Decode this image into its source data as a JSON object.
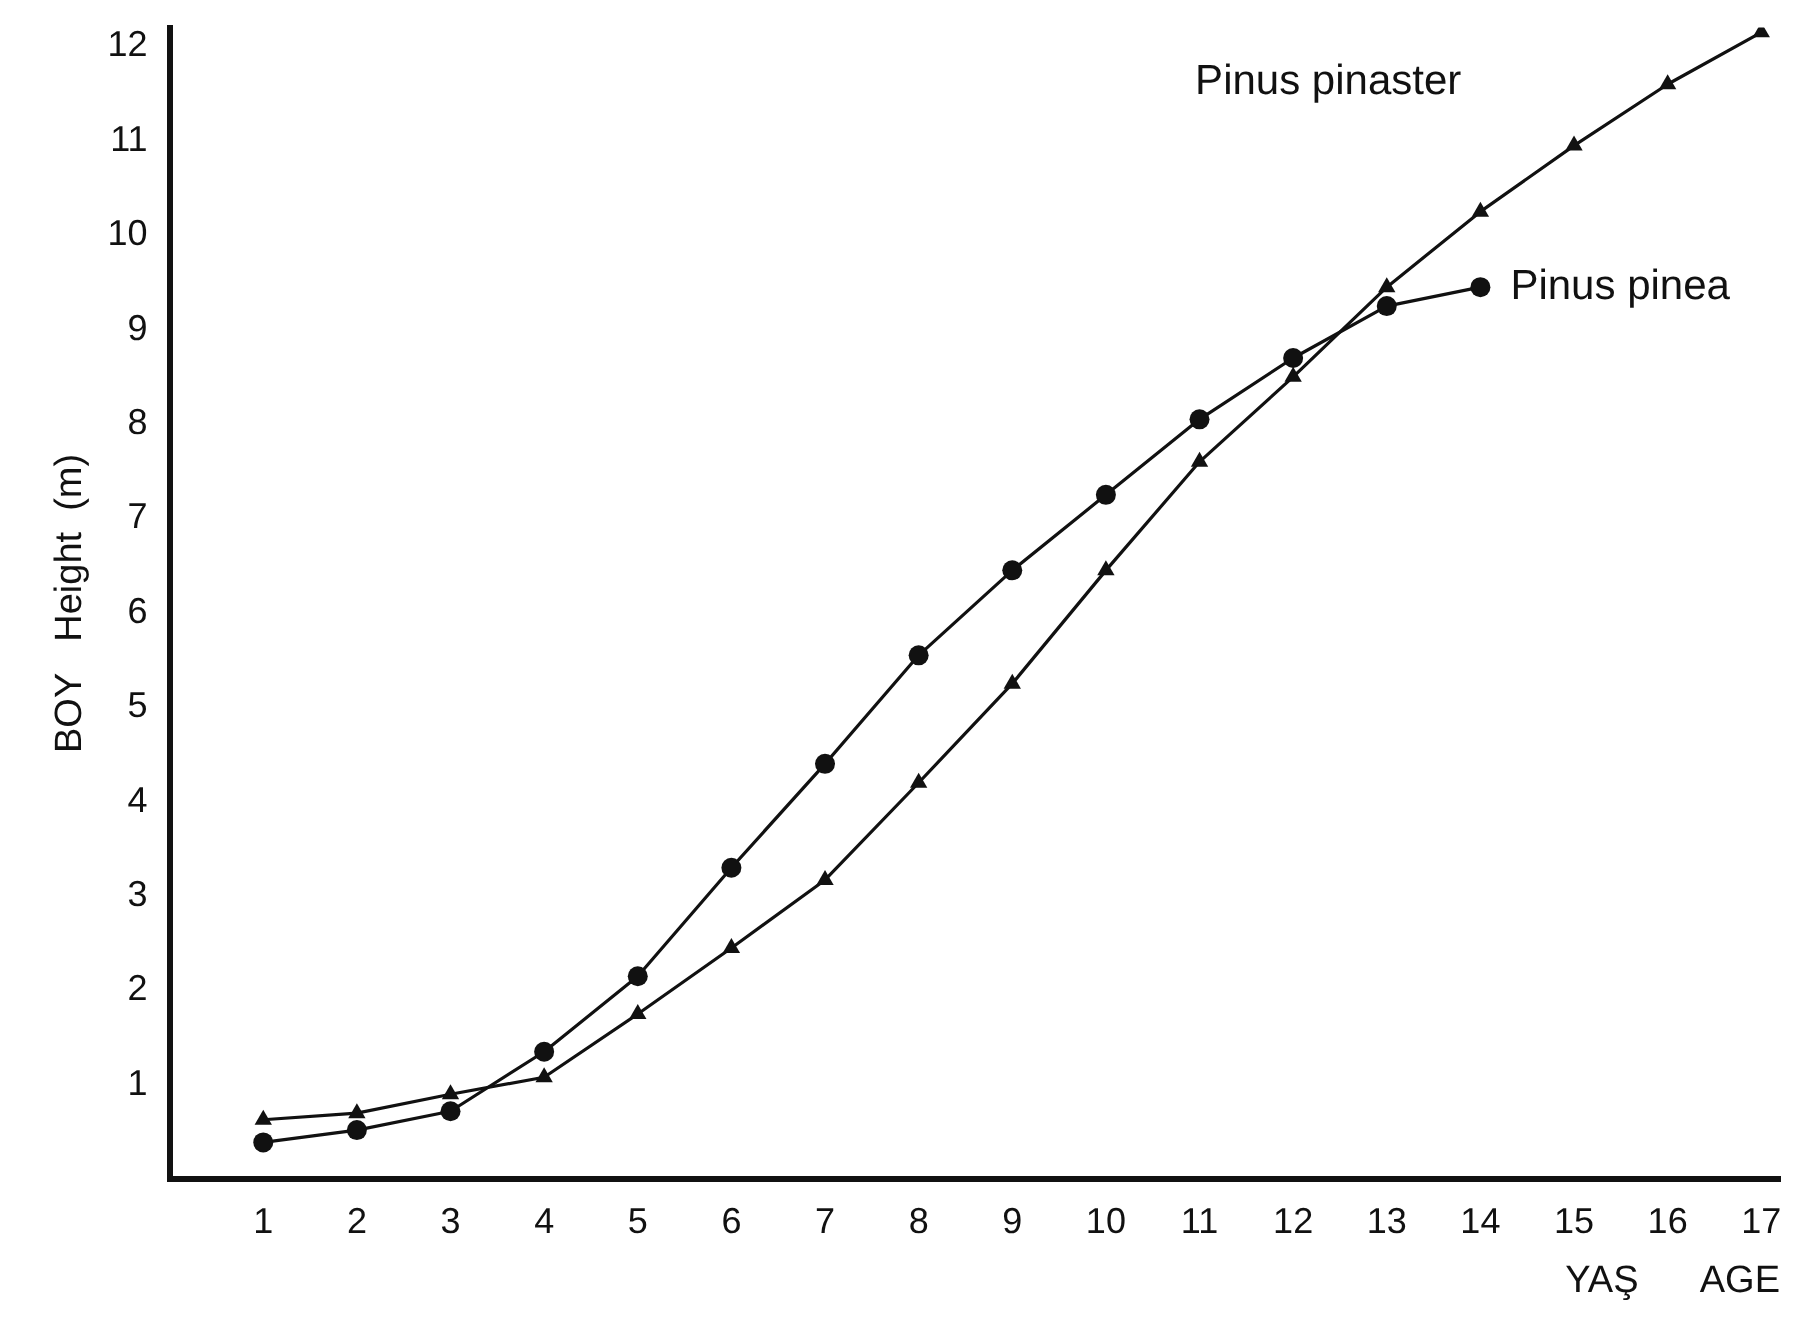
{
  "chart_data": {
    "type": "line",
    "ylabel": "BOY   Height  (m)",
    "xlabel": "YAŞ      AGE",
    "x": [
      1,
      2,
      3,
      4,
      5,
      6,
      7,
      8,
      9,
      10,
      11,
      12,
      13,
      14,
      15,
      16,
      17
    ],
    "xlim": [
      0,
      17.2
    ],
    "xticks": [
      1,
      2,
      3,
      4,
      5,
      6,
      7,
      8,
      9,
      10,
      11,
      12,
      13,
      14,
      15,
      16,
      17
    ],
    "ylim": [
      0,
      12.2
    ],
    "yticks": [
      1,
      2,
      3,
      4,
      5,
      6,
      7,
      8,
      9,
      10,
      11,
      12
    ],
    "grid": false,
    "legend": false,
    "series": [
      {
        "name": "Pinus pinaster",
        "color": "#111111",
        "marker": "triangle",
        "values": [
          0.63,
          0.7,
          0.9,
          1.08,
          1.75,
          2.45,
          3.17,
          4.2,
          5.25,
          6.45,
          7.6,
          8.5,
          9.45,
          10.25,
          10.95,
          11.6,
          12.15
        ]
      },
      {
        "name": "Pinus pinea",
        "color": "#111111",
        "marker": "circle",
        "values": [
          0.39,
          0.52,
          0.72,
          1.35,
          2.15,
          3.3,
          4.4,
          5.55,
          6.45,
          7.25,
          8.05,
          8.7,
          9.25,
          9.45,
          null,
          null,
          null
        ]
      }
    ]
  }
}
